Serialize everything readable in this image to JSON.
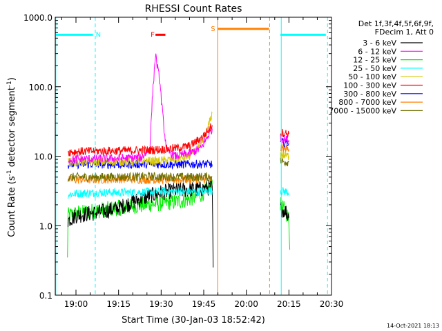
{
  "chart_data": {
    "type": "line",
    "title": "RHESSI Count Rates",
    "xlabel": "Start Time (30-Jan-03 18:52:42)",
    "ylabel_main": "Count Rate (s",
    "ylabel_sup1": "-1",
    "ylabel_mid": " detector segment",
    "ylabel_sup2": "-1",
    "ylabel_end": ")",
    "yscale": "log",
    "ylim": [
      0.1,
      1000
    ],
    "xlim_min": [
      1132.7,
      1230
    ],
    "x_ticks": [
      {
        "m": 1140,
        "label": "19:00"
      },
      {
        "m": 1155,
        "label": "19:15"
      },
      {
        "m": 1170,
        "label": "19:30"
      },
      {
        "m": 1185,
        "label": "19:45"
      },
      {
        "m": 1200,
        "label": "20:00"
      },
      {
        "m": 1215,
        "label": "20:15"
      },
      {
        "m": 1230,
        "label": "20:30"
      }
    ],
    "y_ticks": [
      {
        "v": 0.1,
        "label": "0.1"
      },
      {
        "v": 1,
        "label": "1.0"
      },
      {
        "v": 10,
        "label": "10.0"
      },
      {
        "v": 100,
        "label": "100.0"
      },
      {
        "v": 1000,
        "label": "1000.0"
      }
    ],
    "legend": {
      "header": [
        "Det 1f,3f,4f,5f,6f,9f,",
        "FDecim 1, Att 0"
      ],
      "entries": [
        {
          "label": "3 - 6 keV",
          "color": "#000000"
        },
        {
          "label": "6 - 12 keV",
          "color": "#ff00ff"
        },
        {
          "label": "12 - 25 keV",
          "color": "#00ee00"
        },
        {
          "label": "25 - 50 keV",
          "color": "#00ffff"
        },
        {
          "label": "50 - 100 keV",
          "color": "#d8c800"
        },
        {
          "label": "100 - 300 keV",
          "color": "#ff0000"
        },
        {
          "label": "300 - 800 keV",
          "color": "#0000ff"
        },
        {
          "label": "800 - 7000 keV",
          "color": "#ff8000"
        },
        {
          "label": "7000 - 15000 keV",
          "color": "#707000"
        }
      ]
    },
    "series": [
      {
        "color": "#00ee00",
        "segments": [
          [
            [
              1137,
              0.32
            ],
            [
              1137.2,
              1.4
            ],
            [
              1140,
              1.5
            ],
            [
              1145,
              1.6
            ],
            [
              1150,
              1.7
            ],
            [
              1155,
              1.8
            ],
            [
              1160,
              1.9
            ],
            [
              1165,
              2.0
            ],
            [
              1170,
              2.1
            ],
            [
              1175,
              2.2
            ],
            [
              1180,
              2.4
            ],
            [
              1184,
              2.8
            ],
            [
              1187,
              3.4
            ],
            [
              1188,
              4.5
            ]
          ],
          [
            [
              1212,
              2.0
            ],
            [
              1214,
              1.6
            ],
            [
              1215,
              1.2
            ],
            [
              1215.3,
              0.45
            ]
          ]
        ]
      },
      {
        "color": "#000000",
        "segments": [
          [
            [
              1137.2,
              1.2
            ],
            [
              1140,
              1.4
            ],
            [
              1145,
              1.5
            ],
            [
              1150,
              1.6
            ],
            [
              1155,
              1.8
            ],
            [
              1160,
              2.2
            ],
            [
              1165,
              2.6
            ],
            [
              1170,
              3.0
            ],
            [
              1175,
              3.2
            ],
            [
              1180,
              3.3
            ],
            [
              1185,
              3.4
            ],
            [
              1188,
              3.6
            ],
            [
              1188.3,
              0.25
            ]
          ],
          [
            [
              1212,
              1.8
            ],
            [
              1214,
              1.6
            ],
            [
              1215,
              1.3
            ]
          ]
        ]
      },
      {
        "color": "#00ffff",
        "segments": [
          [
            [
              1137.2,
              2.8
            ],
            [
              1140,
              2.9
            ],
            [
              1150,
              3.0
            ],
            [
              1160,
              3.0
            ],
            [
              1170,
              3.1
            ],
            [
              1180,
              3.1
            ],
            [
              1188,
              3.2
            ]
          ],
          [
            [
              1212,
              3.2
            ],
            [
              1215,
              3.0
            ]
          ]
        ]
      },
      {
        "color": "#ff8000",
        "segments": [
          [
            [
              1137.2,
              4.6
            ],
            [
              1145,
              4.6
            ],
            [
              1155,
              4.7
            ],
            [
              1165,
              4.6
            ],
            [
              1175,
              4.6
            ],
            [
              1185,
              4.7
            ],
            [
              1188,
              4.6
            ]
          ],
          [
            [
              1212,
              13
            ],
            [
              1215,
              12.5
            ]
          ]
        ]
      },
      {
        "color": "#707000",
        "segments": [
          [
            [
              1137.2,
              5.0
            ],
            [
              1150,
              5.0
            ],
            [
              1165,
              5.1
            ],
            [
              1180,
              5.0
            ],
            [
              1188,
              5.1
            ]
          ],
          [
            [
              1212,
              8.5
            ],
            [
              1215,
              8.2
            ]
          ]
        ]
      },
      {
        "color": "#0000ff",
        "segments": [
          [
            [
              1137.2,
              7.6
            ],
            [
              1145,
              7.7
            ],
            [
              1155,
              7.6
            ],
            [
              1165,
              7.7
            ],
            [
              1175,
              7.6
            ],
            [
              1185,
              7.7
            ],
            [
              1188,
              7.6
            ]
          ],
          [
            [
              1212,
              16
            ],
            [
              1215,
              15.5
            ]
          ]
        ]
      },
      {
        "color": "#d8c800",
        "segments": [
          [
            [
              1137.2,
              8.3
            ],
            [
              1150,
              8.3
            ],
            [
              1160,
              8.4
            ],
            [
              1170,
              8.6
            ],
            [
              1175,
              9.0
            ],
            [
              1180,
              10
            ],
            [
              1184,
              14
            ],
            [
              1186,
              22
            ],
            [
              1188,
              42
            ]
          ],
          [
            [
              1212,
              10.5
            ],
            [
              1215,
              10
            ]
          ]
        ]
      },
      {
        "color": "#ff00ff",
        "segments": [
          [
            [
              1137.2,
              9.0
            ],
            [
              1150,
              9.2
            ],
            [
              1163,
              9.5
            ],
            [
              1166,
              13
            ],
            [
              1167,
              80
            ],
            [
              1168,
              290
            ],
            [
              1169.5,
              120
            ],
            [
              1171,
              25
            ],
            [
              1172,
              12
            ],
            [
              1175,
              10
            ],
            [
              1180,
              11
            ],
            [
              1184,
              13
            ],
            [
              1186,
              18
            ],
            [
              1188,
              25
            ]
          ],
          [
            [
              1212,
              18
            ],
            [
              1215,
              17
            ]
          ]
        ]
      },
      {
        "color": "#ff0000",
        "segments": [
          [
            [
              1137.2,
              11.5
            ],
            [
              1145,
              11.8
            ],
            [
              1155,
              12
            ],
            [
              1165,
              12.2
            ],
            [
              1170,
              12.5
            ],
            [
              1175,
              13
            ],
            [
              1180,
              14
            ],
            [
              1184,
              18
            ],
            [
              1186,
              22
            ],
            [
              1188,
              28
            ]
          ],
          [
            [
              1212,
              22
            ],
            [
              1215,
              21
            ]
          ]
        ]
      }
    ],
    "flare_bar": {
      "x1": 1168,
      "x2": 1171.5,
      "y": 560,
      "color": "#ff0000",
      "label": "F"
    },
    "saa_bar": {
      "x1": 1190,
      "x2": 1208,
      "y": 680,
      "color": "#ff8000",
      "label": "S"
    },
    "night_bars": [
      {
        "x1": 1132.7,
        "x2": 1146,
        "y": 560,
        "color": "#00ffff",
        "label": "N"
      },
      {
        "x1": 1212,
        "x2": 1228,
        "y": 560,
        "color": "#00ffff",
        "label": ""
      }
    ],
    "vlines": [
      {
        "m": 1132.9,
        "color": "#00ffff",
        "dash": false
      },
      {
        "m": 1146.8,
        "color": "#00ffff",
        "dash": true
      },
      {
        "m": 1189.9,
        "color": "#ff8000",
        "dash": false
      },
      {
        "m": 1208.2,
        "color": "#ff8000",
        "dash": true
      },
      {
        "m": 1212.3,
        "color": "#00ffff",
        "dash": false
      },
      {
        "m": 1228.6,
        "color": "#00ffff",
        "dash": true
      }
    ]
  },
  "footer": {
    "timestamp": "14-Oct-2021 18:13"
  }
}
